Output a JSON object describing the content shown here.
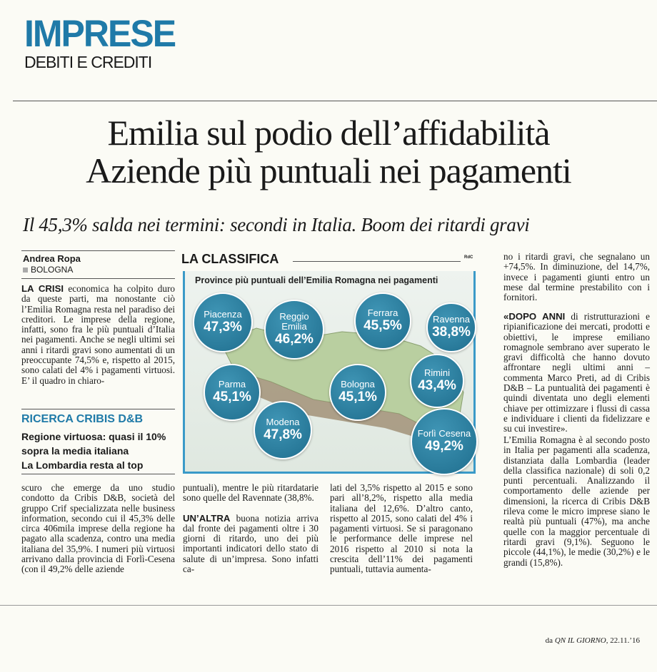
{
  "header": {
    "section": "IMPRESE",
    "subsection": "DEBITI E CREDITI"
  },
  "article": {
    "headline_1": "Emilia sul podio dell’affidabilità",
    "headline_2": "Aziende più puntuali nei pagamenti",
    "deck": "Il 45,3% salda nei termini: secondi in Italia. Boom dei ritardi gravi",
    "author": "Andrea Ropa",
    "city": "BOLOGNA",
    "p1_lead": "LA CRISI",
    "p1": " economica ha colpito duro da queste parti, ma nonostante ciò l’Emilia Romagna resta nel paradiso dei creditori. Le imprese della regione, infatti, sono fra le più puntuali d’Italia nei pagamenti. Anche se negli ultimi sei anni i ritardi gravi sono aumentati di un preoccupante 74,5% e, rispetto al 2015, sono calati del 4% i pagamenti virtuosi. E’ il quadro in chiaro-",
    "p1_cont": "scuro che emerge da uno studio condotto da Cribis D&B, società del gruppo Crif specializzata nelle business information, secondo cui il 45,3% delle circa 406mila imprese della regione ha pagato alla scadenza, contro una media italiana del 35,9%. I numeri più virtuosi arrivano dalla provincia di Forlì-Cesena (con il 49,2% delle aziende",
    "p2": "puntuali), mentre le più ritardatarie sono quelle del Ravennate (38,8%.",
    "p3_lead": "UN’ALTRA",
    "p3": " buona notizia arriva dal fronte dei pagamenti oltre i 30 giorni di ritardo, uno dei più importanti indicatori dello stato di salute di un’impresa. Sono infatti ca-",
    "p3_cont": "lati del 3,5% rispetto al 2015 e sono pari all’8,2%, rispetto alla media italiana del 12,6%. D’altro canto, rispetto al 2015, sono calati del 4% i pagamenti virtuosi. Se si paragonano le performance delle imprese nel 2016 rispetto al 2010 si nota la crescita dell’11% dei pagamenti puntuali, tuttavia aumenta-",
    "p4": "no i ritardi gravi, che segnalano un +74,5%. In diminuzione, del 14,7%, invece i pagamenti giunti entro un mese dal termine prestabilito con i fornitori.",
    "p5_lead": "«DOPO ANNI",
    "p5": " di ristrutturazioni e ripianificazione dei mercati, prodotti e obiettivi, le imprese emiliano romagnole sembrano aver superato le gravi difficoltà che hanno dovuto affrontare negli ultimi anni – commenta Marco Preti, ad di Cribis D&B – La puntualità dei pagamenti è quindi diventata uno degli elementi chiave per ottimizzare i flussi di cassa e individuare i clienti da fidelizzare e su cui investire».",
    "p6": "L’Emilia Romagna è al secondo posto in Italia per pagamenti alla scadenza, distanziata dalla Lombardia (leader della classifica nazionale) di soli 0,2 punti percentuali. Analizzando il comportamento delle aziende per dimensioni, la ricerca di Cribis D&B rileva come le micro imprese siano le realtà più puntuali (47%), ma anche quelle con la maggior percentuale di ritardi gravi (9,1%). Seguono le piccole (44,1%), le medie (30,2%) e le grandi (15,8%)."
  },
  "sidebar": {
    "kicker": "RICERCA CRIBIS D&B",
    "lines": [
      "Regione virtuosa: quasi il 10%",
      "sopra la media italiana",
      "La Lombardia resta al top"
    ]
  },
  "infographic": {
    "label": "LA CLASSIFICA",
    "credit": "RdC",
    "title": "Province più puntuali dell’Emilia Romagna nei pagamenti",
    "bubble_color": "#2a80a3",
    "provinces": [
      {
        "name": "Piacenza",
        "value": "47,3%"
      },
      {
        "name": "Reggio Emilia",
        "value": "46,2%"
      },
      {
        "name": "Ferrara",
        "value": "45,5%"
      },
      {
        "name": "Ravenna",
        "value": "38,8%"
      },
      {
        "name": "Parma",
        "value": "45,1%"
      },
      {
        "name": "Bologna",
        "value": "45,1%"
      },
      {
        "name": "Rimini",
        "value": "43,4%"
      },
      {
        "name": "Modena",
        "value": "47,8%"
      },
      {
        "name": "Forlì Cesena",
        "value": "49,2%"
      }
    ]
  },
  "source": {
    "prefix": "da ",
    "paper": "QN IL GIORNO",
    "date": ", 22.11.’16"
  }
}
